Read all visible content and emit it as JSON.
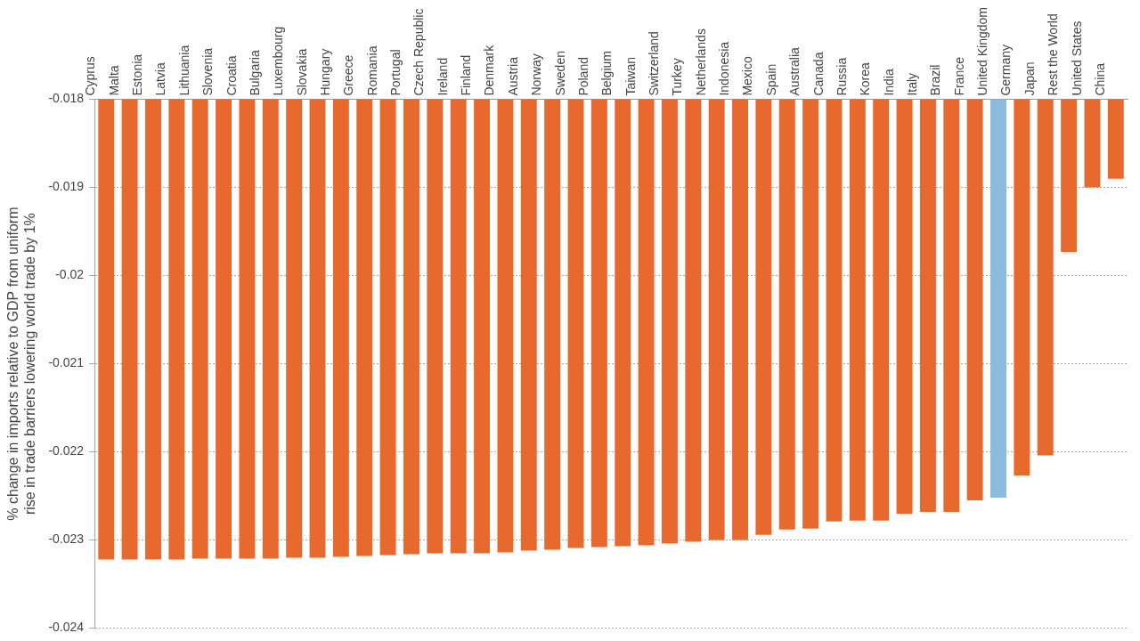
{
  "chart_data": {
    "type": "bar",
    "y_label": "% change in imports relative to GDP from uniform rise in trade barriers lowering world trade by 1%",
    "categories": [
      "Cyprus",
      "Malta",
      "Estonia",
      "Latvia",
      "Lithuania",
      "Slovenia",
      "Croatia",
      "Bulgaria",
      "Luxembourg",
      "Slovakia",
      "Hungary",
      "Greece",
      "Romania",
      "Portugal",
      "Czech Republic",
      "Ireland",
      "Finland",
      "Denmark",
      "Austria",
      "Norway",
      "Sweden",
      "Poland",
      "Belgium",
      "Taiwan",
      "Switzerland",
      "Turkey",
      "Netherlands",
      "Indonesia",
      "Mexico",
      "Spain",
      "Australia",
      "Canada",
      "Russia",
      "Korea",
      "India",
      "Italy",
      "Brazil",
      "France",
      "United Kingdom",
      "Germany",
      "Japan",
      "Rest the World",
      "United States",
      "China"
    ],
    "values": [
      -0.02322,
      -0.02322,
      -0.02322,
      -0.02322,
      -0.02321,
      -0.02321,
      -0.02321,
      -0.02321,
      -0.0232,
      -0.0232,
      -0.02319,
      -0.02318,
      -0.02317,
      -0.02316,
      -0.02315,
      -0.02315,
      -0.02315,
      -0.02314,
      -0.02312,
      -0.02311,
      -0.02309,
      -0.02308,
      -0.02307,
      -0.02306,
      -0.02304,
      -0.02302,
      -0.023,
      -0.023,
      -0.02294,
      -0.02288,
      -0.02287,
      -0.02279,
      -0.02278,
      -0.02278,
      -0.0227,
      -0.02268,
      -0.02268,
      -0.02255,
      -0.02252,
      -0.02227,
      -0.02204,
      -0.01973,
      -0.019,
      -0.0189
    ],
    "colors": [
      "#e8692d",
      "#e8692d",
      "#e8692d",
      "#e8692d",
      "#e8692d",
      "#e8692d",
      "#e8692d",
      "#e8692d",
      "#e8692d",
      "#e8692d",
      "#e8692d",
      "#e8692d",
      "#e8692d",
      "#e8692d",
      "#e8692d",
      "#e8692d",
      "#e8692d",
      "#e8692d",
      "#e8692d",
      "#e8692d",
      "#e8692d",
      "#e8692d",
      "#e8692d",
      "#e8692d",
      "#e8692d",
      "#e8692d",
      "#e8692d",
      "#e8692d",
      "#e8692d",
      "#e8692d",
      "#e8692d",
      "#e8692d",
      "#e8692d",
      "#e8692d",
      "#e8692d",
      "#e8692d",
      "#e8692d",
      "#e8692d",
      "#8bbbdd",
      "#e8692d",
      "#e8692d",
      "#e8692d",
      "#e8692d",
      "#e8692d"
    ],
    "ylim": [
      -0.024,
      -0.018
    ],
    "yticks": [
      -0.024,
      -0.023,
      -0.022,
      -0.021,
      -0.02,
      -0.019,
      -0.018
    ],
    "grid": true
  }
}
